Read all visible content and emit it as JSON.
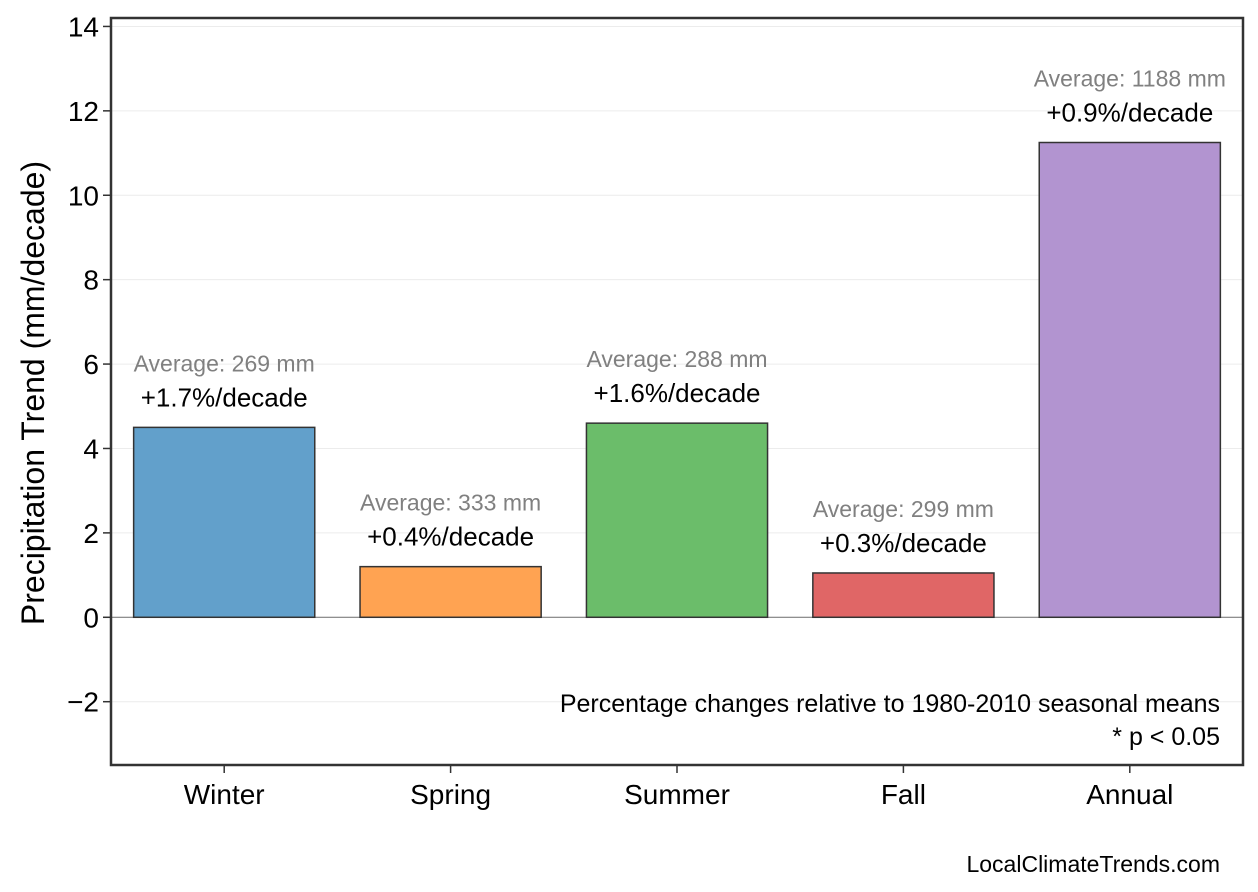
{
  "chart_data": {
    "type": "bar",
    "categories": [
      "Winter",
      "Spring",
      "Summer",
      "Fall",
      "Annual"
    ],
    "values": [
      4.5,
      1.2,
      4.6,
      1.05,
      11.25
    ],
    "average_labels": [
      "Average: 269 mm",
      "Average: 333 mm",
      "Average: 288 mm",
      "Average: 299 mm",
      "Average: 1188 mm"
    ],
    "percent_labels": [
      "+1.7%/decade",
      "+0.4%/decade",
      "+1.6%/decade",
      "+0.3%/decade",
      "+0.9%/decade"
    ],
    "colors": [
      "#62a0cb",
      "#ffa352",
      "#6bbd6a",
      "#e06666",
      "#b294d0"
    ],
    "ylabel": "Precipitation Trend (mm/decade)",
    "xlabel": "",
    "ylim": [
      -3.5,
      14.2
    ],
    "yticks": [
      -2,
      0,
      2,
      4,
      6,
      8,
      10,
      12,
      14
    ],
    "ytick_labels": [
      "−2",
      "0",
      "2",
      "4",
      "6",
      "8",
      "10",
      "12",
      "14"
    ],
    "grid": true,
    "notes": [
      "Percentage changes relative to 1980-2010 seasonal means",
      "* p < 0.05"
    ],
    "watermark": "LocalClimateTrends.com"
  }
}
